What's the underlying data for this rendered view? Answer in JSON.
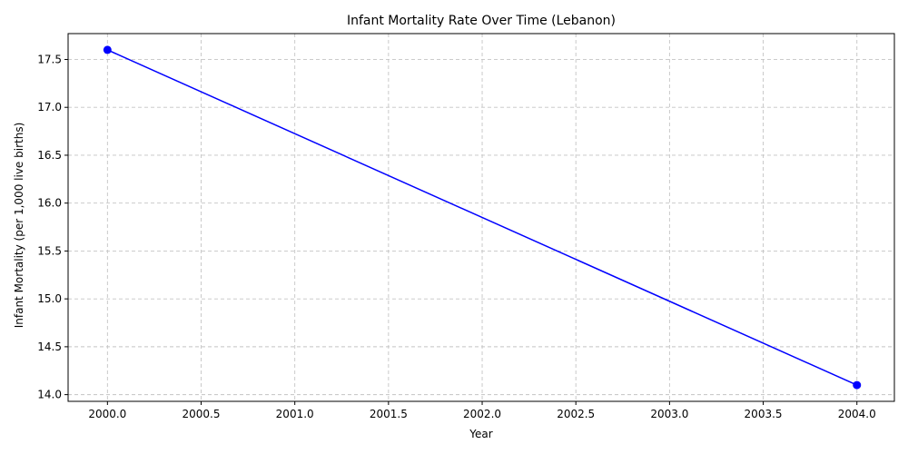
{
  "chart_data": {
    "type": "line",
    "title": "Infant Mortality Rate Over Time (Lebanon)",
    "xlabel": "Year",
    "ylabel": "Infant Mortality (per 1,000 live births)",
    "xlim": [
      1999.79,
      2004.2
    ],
    "ylim": [
      13.93,
      17.77
    ],
    "x_ticks": [
      "2000.0",
      "2000.5",
      "2001.0",
      "2001.5",
      "2002.0",
      "2002.5",
      "2003.0",
      "2003.5",
      "2004.0"
    ],
    "y_ticks": [
      "14.0",
      "14.5",
      "15.0",
      "15.5",
      "16.0",
      "16.5",
      "17.0",
      "17.5"
    ],
    "grid": true,
    "series": [
      {
        "color": "#0000ff",
        "marker": "circle",
        "x": [
          2000,
          2004
        ],
        "y": [
          17.6,
          14.1
        ]
      }
    ]
  }
}
